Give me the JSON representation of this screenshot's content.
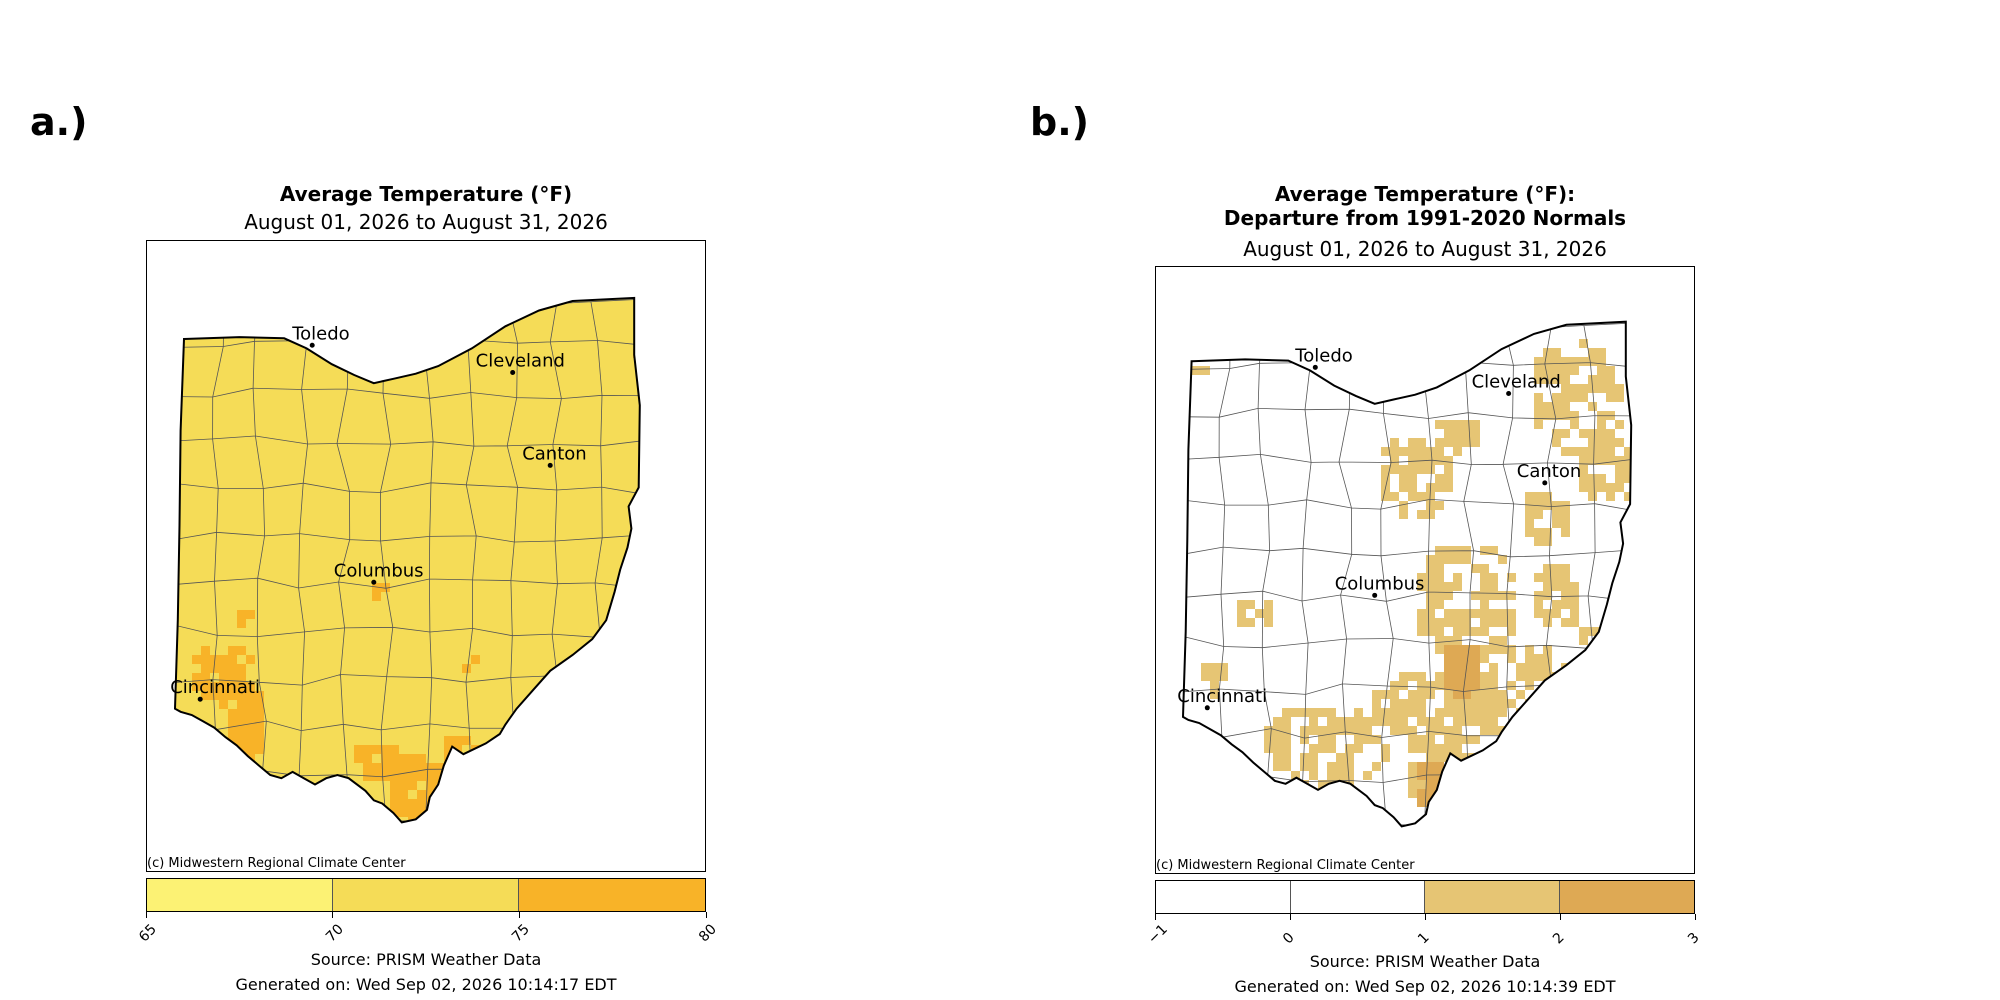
{
  "panels": [
    {
      "label": "a.)",
      "title": "Average Temperature (°F)",
      "title2": "",
      "date_range": "August 01, 2026 to August 31, 2026",
      "credit": "(c) Midwestern Regional Climate Center",
      "source": "Source: PRISM Weather Data",
      "generated": "Generated on: Wed Sep 02, 2026 10:14:17 EDT",
      "colorbar": {
        "ticks": [
          "65",
          "70",
          "75",
          "80"
        ],
        "colors": [
          "#fcf274",
          "#f5dc57",
          "#f8b328"
        ]
      },
      "base_fill": "#f5dc57",
      "hot_fill": "#f8b328",
      "cities": [
        {
          "name": "Toledo"
        },
        {
          "name": "Cleveland"
        },
        {
          "name": "Canton"
        },
        {
          "name": "Columbus"
        },
        {
          "name": "Cincinnati"
        }
      ]
    },
    {
      "label": "b.)",
      "title": "Average Temperature (°F):",
      "title2": "Departure from 1991-2020 Normals",
      "date_range": "August 01, 2026 to August 31, 2026",
      "credit": "(c) Midwestern Regional Climate Center",
      "source": "Source: PRISM Weather Data",
      "generated": "Generated on: Wed Sep 02, 2026 10:14:39 EDT",
      "colorbar": {
        "ticks": [
          "−1",
          "0",
          "1",
          "2",
          "3"
        ],
        "colors": [
          "#ffffff",
          "#ffffff",
          "#e6c574",
          "#dea954"
        ]
      },
      "base_fill": "#ffffff",
      "hot_fill": "#e6c574",
      "cities": [
        {
          "name": "Toledo"
        },
        {
          "name": "Cleveland"
        },
        {
          "name": "Canton"
        },
        {
          "name": "Columbus"
        },
        {
          "name": "Cincinnati"
        }
      ]
    }
  ]
}
